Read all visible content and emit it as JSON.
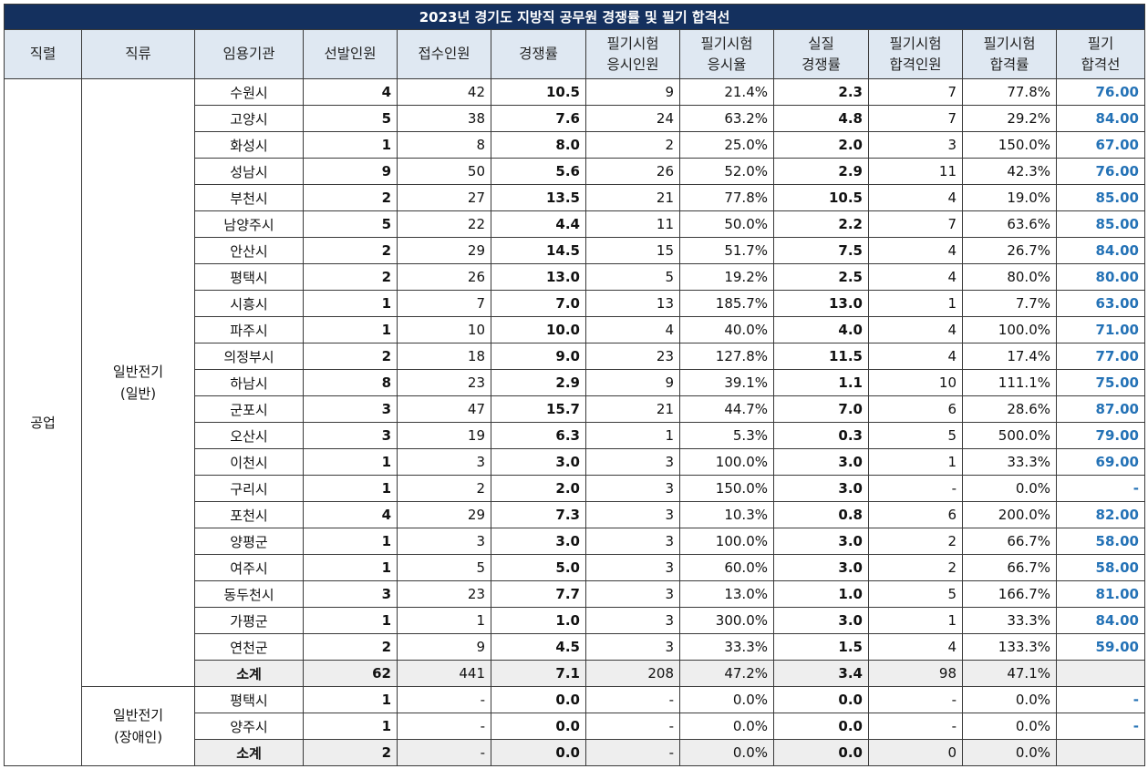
{
  "title": "2023년 경기도 지방직 공무원 경쟁률 및 필기 합격선",
  "headers": [
    [
      "직렬"
    ],
    [
      "직류"
    ],
    [
      "임용기관"
    ],
    [
      "선발인원"
    ],
    [
      "접수인원"
    ],
    [
      "경쟁률"
    ],
    [
      "필기시험",
      "응시인원"
    ],
    [
      "필기시험",
      "응시율"
    ],
    [
      "실질",
      "경쟁률"
    ],
    [
      "필기시험",
      "합격인원"
    ],
    [
      "필기시험",
      "합격률"
    ],
    [
      "필기",
      "합격선"
    ]
  ],
  "series_name": "공업",
  "group1": {
    "name_line1": "일반전기",
    "name_line2": "(일반)",
    "rows": [
      [
        "수원시",
        "4",
        "42",
        "10.5",
        "9",
        "21.4%",
        "2.3",
        "7",
        "77.8%",
        "76.00"
      ],
      [
        "고양시",
        "5",
        "38",
        "7.6",
        "24",
        "63.2%",
        "4.8",
        "7",
        "29.2%",
        "84.00"
      ],
      [
        "화성시",
        "1",
        "8",
        "8.0",
        "2",
        "25.0%",
        "2.0",
        "3",
        "150.0%",
        "67.00"
      ],
      [
        "성남시",
        "9",
        "50",
        "5.6",
        "26",
        "52.0%",
        "2.9",
        "11",
        "42.3%",
        "76.00"
      ],
      [
        "부천시",
        "2",
        "27",
        "13.5",
        "21",
        "77.8%",
        "10.5",
        "4",
        "19.0%",
        "85.00"
      ],
      [
        "남양주시",
        "5",
        "22",
        "4.4",
        "11",
        "50.0%",
        "2.2",
        "7",
        "63.6%",
        "85.00"
      ],
      [
        "안산시",
        "2",
        "29",
        "14.5",
        "15",
        "51.7%",
        "7.5",
        "4",
        "26.7%",
        "84.00"
      ],
      [
        "평택시",
        "2",
        "26",
        "13.0",
        "5",
        "19.2%",
        "2.5",
        "4",
        "80.0%",
        "80.00"
      ],
      [
        "시흥시",
        "1",
        "7",
        "7.0",
        "13",
        "185.7%",
        "13.0",
        "1",
        "7.7%",
        "63.00"
      ],
      [
        "파주시",
        "1",
        "10",
        "10.0",
        "4",
        "40.0%",
        "4.0",
        "4",
        "100.0%",
        "71.00"
      ],
      [
        "의정부시",
        "2",
        "18",
        "9.0",
        "23",
        "127.8%",
        "11.5",
        "4",
        "17.4%",
        "77.00"
      ],
      [
        "하남시",
        "8",
        "23",
        "2.9",
        "9",
        "39.1%",
        "1.1",
        "10",
        "111.1%",
        "75.00"
      ],
      [
        "군포시",
        "3",
        "47",
        "15.7",
        "21",
        "44.7%",
        "7.0",
        "6",
        "28.6%",
        "87.00"
      ],
      [
        "오산시",
        "3",
        "19",
        "6.3",
        "1",
        "5.3%",
        "0.3",
        "5",
        "500.0%",
        "79.00"
      ],
      [
        "이천시",
        "1",
        "3",
        "3.0",
        "3",
        "100.0%",
        "3.0",
        "1",
        "33.3%",
        "69.00"
      ],
      [
        "구리시",
        "1",
        "2",
        "2.0",
        "3",
        "150.0%",
        "3.0",
        "-",
        "0.0%",
        "-"
      ],
      [
        "포천시",
        "4",
        "29",
        "7.3",
        "3",
        "10.3%",
        "0.8",
        "6",
        "200.0%",
        "82.00"
      ],
      [
        "양평군",
        "1",
        "3",
        "3.0",
        "3",
        "100.0%",
        "3.0",
        "2",
        "66.7%",
        "58.00"
      ],
      [
        "여주시",
        "1",
        "5",
        "5.0",
        "3",
        "60.0%",
        "3.0",
        "2",
        "66.7%",
        "58.00"
      ],
      [
        "동두천시",
        "3",
        "23",
        "7.7",
        "3",
        "13.0%",
        "1.0",
        "5",
        "166.7%",
        "81.00"
      ],
      [
        "가평군",
        "1",
        "1",
        "1.0",
        "3",
        "300.0%",
        "3.0",
        "1",
        "33.3%",
        "84.00"
      ],
      [
        "연천군",
        "2",
        "9",
        "4.5",
        "3",
        "33.3%",
        "1.5",
        "4",
        "133.3%",
        "59.00"
      ]
    ],
    "subtotal": [
      "소계",
      "62",
      "441",
      "7.1",
      "208",
      "47.2%",
      "3.4",
      "98",
      "47.1%",
      ""
    ]
  },
  "group2": {
    "name_line1": "일반전기",
    "name_line2": "(장애인)",
    "rows": [
      [
        "평택시",
        "1",
        "-",
        "0.0",
        "-",
        "0.0%",
        "0.0",
        "-",
        "0.0%",
        "-"
      ],
      [
        "양주시",
        "1",
        "-",
        "0.0",
        "-",
        "0.0%",
        "0.0",
        "-",
        "0.0%",
        "-"
      ]
    ],
    "subtotal": [
      "소계",
      "2",
      "-",
      "0.0",
      "-",
      "0.0%",
      "0.0",
      "0",
      "0.0%",
      ""
    ]
  },
  "colors": {
    "title_bg": "#14305e",
    "header_bg": "#dfe8f2",
    "pass_mark_text": "#2472b6",
    "subtotal_bg": "#eeeeee"
  }
}
